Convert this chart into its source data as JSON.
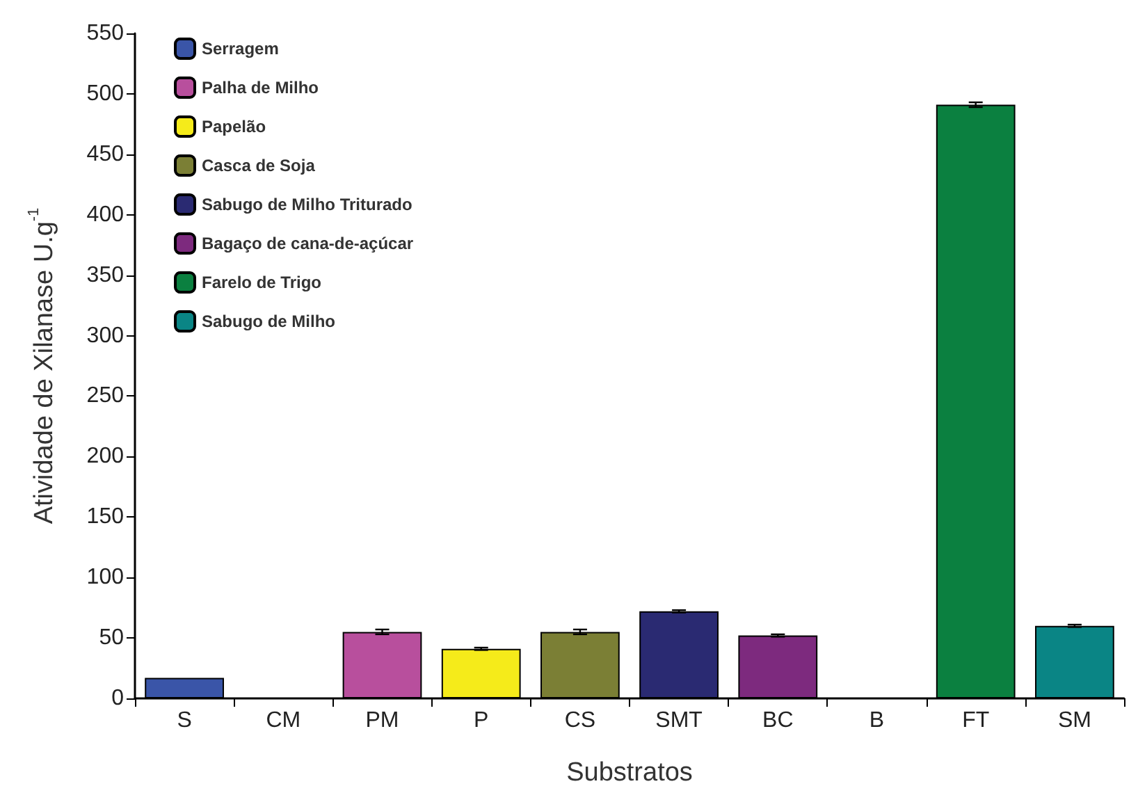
{
  "chart_data": {
    "type": "bar",
    "xlabel": "Substratos",
    "ylabel": "Atividade de Xilanase U.g$^{-1}$",
    "categories": [
      "S",
      "CM",
      "PM",
      "P",
      "CS",
      "SMT",
      "BC",
      "B",
      "FT",
      "SM"
    ],
    "series": [
      {
        "name": "Serragem",
        "color": "#3a55a8",
        "values": [
          17,
          null,
          null,
          null,
          null,
          null,
          null,
          null,
          null,
          null
        ],
        "errors": [
          null,
          null,
          null,
          null,
          null,
          null,
          null,
          null,
          null,
          null
        ]
      },
      {
        "name": "Palha de Milho",
        "color": "#b84f9d",
        "values": [
          null,
          null,
          55,
          null,
          null,
          null,
          null,
          null,
          null,
          null
        ],
        "errors": [
          null,
          null,
          2,
          null,
          null,
          null,
          null,
          null,
          null,
          null
        ]
      },
      {
        "name": "Papelão",
        "color": "#f5eb1a",
        "values": [
          null,
          null,
          null,
          41,
          null,
          null,
          null,
          null,
          null,
          null
        ],
        "errors": [
          null,
          null,
          null,
          1,
          null,
          null,
          null,
          null,
          null,
          null
        ]
      },
      {
        "name": "Casca de Soja",
        "color": "#7b7f35",
        "values": [
          null,
          null,
          null,
          null,
          55,
          null,
          null,
          null,
          null,
          null
        ],
        "errors": [
          null,
          null,
          null,
          null,
          2,
          null,
          null,
          null,
          null,
          null
        ]
      },
      {
        "name": "Sabugo de Milho Triturado",
        "color": "#2a2a72",
        "values": [
          null,
          null,
          null,
          null,
          null,
          72,
          null,
          null,
          null,
          null
        ],
        "errors": [
          null,
          null,
          null,
          null,
          null,
          1,
          null,
          null,
          null,
          null
        ]
      },
      {
        "name": "Bagaço de cana-de-açúcar",
        "color": "#7d2a7e",
        "values": [
          null,
          null,
          null,
          null,
          null,
          null,
          52,
          null,
          null,
          null
        ],
        "errors": [
          null,
          null,
          null,
          null,
          null,
          null,
          1,
          null,
          null,
          null
        ]
      },
      {
        "name": "Farelo de Trigo",
        "color": "#0b8040",
        "values": [
          null,
          null,
          null,
          null,
          null,
          null,
          null,
          null,
          491,
          null
        ],
        "errors": [
          null,
          null,
          null,
          null,
          null,
          null,
          null,
          null,
          2,
          null
        ]
      },
      {
        "name": "Sabugo de Milho",
        "color": "#0a8585",
        "values": [
          null,
          null,
          null,
          null,
          null,
          null,
          null,
          null,
          null,
          60
        ],
        "errors": [
          null,
          null,
          null,
          null,
          null,
          null,
          null,
          null,
          null,
          1
        ]
      }
    ],
    "ylim": [
      0,
      550
    ],
    "yticks": [
      0,
      50,
      100,
      150,
      200,
      250,
      300,
      350,
      400,
      450,
      500,
      550
    ],
    "grid": false,
    "legend": "top left"
  }
}
